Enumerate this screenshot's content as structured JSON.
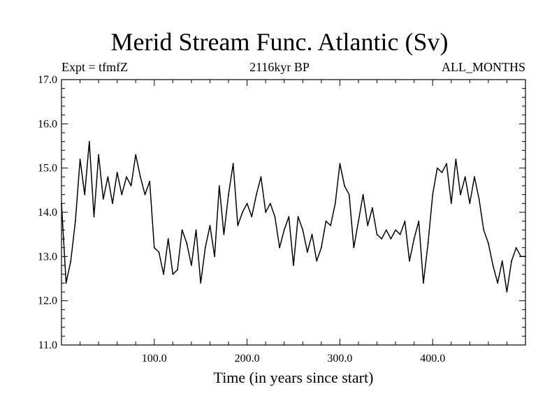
{
  "chart_data": {
    "type": "line",
    "title": "Merid Stream Func. Atlantic (Sv)",
    "subtitle_left": "Expt = tfmfZ",
    "subtitle_center": "2116kyr BP",
    "subtitle_right": "ALL_MONTHS",
    "xlabel": "Time (in years since start)",
    "ylabel": "",
    "xlim": [
      0,
      500
    ],
    "ylim": [
      11.0,
      17.0
    ],
    "x_ticks": [
      100,
      200,
      300,
      400
    ],
    "x_tick_labels": [
      "100.0",
      "200.0",
      "300.0",
      "400.0"
    ],
    "y_ticks": [
      11,
      12,
      13,
      14,
      15,
      16,
      17
    ],
    "y_tick_labels": [
      "11.0",
      "12.0",
      "13.0",
      "14.0",
      "15.0",
      "16.0",
      "17.0"
    ],
    "grid": false,
    "series": [
      {
        "name": "Merid Stream Func. Atlantic",
        "color": "#000000",
        "x": [
          0,
          5,
          10,
          15,
          20,
          25,
          30,
          35,
          40,
          45,
          50,
          55,
          60,
          65,
          70,
          75,
          80,
          85,
          90,
          95,
          100,
          105,
          110,
          115,
          120,
          125,
          130,
          135,
          140,
          145,
          150,
          155,
          160,
          165,
          170,
          175,
          180,
          185,
          190,
          195,
          200,
          205,
          210,
          215,
          220,
          225,
          230,
          235,
          240,
          245,
          250,
          255,
          260,
          265,
          270,
          275,
          280,
          285,
          290,
          295,
          300,
          305,
          310,
          315,
          320,
          325,
          330,
          335,
          340,
          345,
          350,
          355,
          360,
          365,
          370,
          375,
          380,
          385,
          390,
          395,
          400,
          405,
          410,
          415,
          420,
          425,
          430,
          435,
          440,
          445,
          450,
          455,
          460,
          465,
          470,
          475,
          480,
          485,
          490,
          495,
          500
        ],
        "values": [
          14.2,
          12.4,
          12.9,
          13.8,
          15.2,
          14.4,
          15.6,
          13.9,
          15.3,
          14.3,
          14.8,
          14.2,
          14.9,
          14.4,
          14.8,
          14.6,
          15.3,
          14.8,
          14.4,
          14.7,
          13.2,
          13.1,
          12.6,
          13.4,
          12.6,
          12.7,
          13.6,
          13.3,
          12.8,
          13.6,
          12.4,
          13.2,
          13.7,
          13.0,
          14.6,
          13.5,
          14.4,
          15.1,
          13.7,
          14.0,
          14.2,
          13.9,
          14.4,
          14.8,
          14.0,
          14.2,
          13.9,
          13.2,
          13.6,
          13.9,
          12.8,
          13.9,
          13.6,
          13.1,
          13.5,
          12.9,
          13.2,
          13.8,
          13.7,
          14.2,
          15.1,
          14.6,
          14.4,
          13.2,
          13.8,
          14.4,
          13.7,
          14.1,
          13.5,
          13.4,
          13.6,
          13.4,
          13.6,
          13.5,
          13.8,
          12.9,
          13.4,
          13.8,
          12.4,
          13.3,
          14.4,
          15.0,
          14.9,
          15.1,
          14.2,
          15.2,
          14.4,
          14.8,
          14.2,
          14.8,
          14.3,
          13.6,
          13.3,
          12.8,
          12.4,
          12.9,
          12.2,
          12.9,
          13.2,
          13.0,
          13.0
        ]
      }
    ]
  }
}
